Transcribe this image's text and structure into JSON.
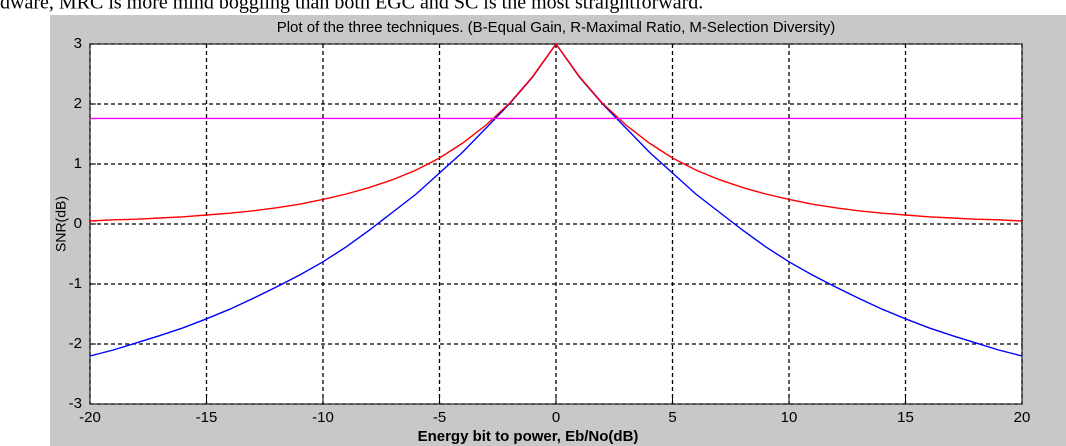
{
  "caption": "dware, MRC is more mind boggling than both EGC and SC is the most straightforward.",
  "chart_data": {
    "type": "line",
    "title": "Plot of the three techniques. (B-Equal Gain, R-Maximal Ratio, M-Selection Diversity)",
    "xlabel": "Energy bit to power, Eb/No(dB)",
    "ylabel": "SNR(dB)",
    "x": [
      -20,
      -19,
      -18,
      -17,
      -16,
      -15,
      -14,
      -13,
      -12,
      -11,
      -10,
      -9,
      -8,
      -7,
      -6,
      -5,
      -4,
      -3,
      -2,
      -1,
      0,
      1,
      2,
      3,
      4,
      5,
      6,
      7,
      8,
      9,
      10,
      11,
      12,
      13,
      14,
      15,
      16,
      17,
      18,
      19,
      20
    ],
    "series": [
      {
        "color": "#0000ff",
        "values": [
          -2.2,
          -2.1,
          -1.98,
          -1.86,
          -1.73,
          -1.58,
          -1.42,
          -1.24,
          -1.05,
          -0.85,
          -0.63,
          -0.38,
          -0.1,
          0.2,
          0.5,
          0.85,
          1.2,
          1.6,
          2.0,
          2.45,
          3,
          2.45,
          2.0,
          1.6,
          1.2,
          0.85,
          0.5,
          0.2,
          -0.1,
          -0.38,
          -0.63,
          -0.85,
          -1.05,
          -1.24,
          -1.42,
          -1.58,
          -1.73,
          -1.86,
          -1.98,
          -2.1,
          -2.2
        ]
      },
      {
        "color": "#ff0000",
        "values": [
          0.05,
          0.07,
          0.08,
          0.1,
          0.12,
          0.15,
          0.18,
          0.22,
          0.27,
          0.33,
          0.41,
          0.5,
          0.61,
          0.74,
          0.9,
          1.1,
          1.35,
          1.65,
          2.01,
          2.46,
          3,
          2.46,
          2.01,
          1.65,
          1.35,
          1.1,
          0.9,
          0.74,
          0.61,
          0.5,
          0.41,
          0.33,
          0.27,
          0.22,
          0.18,
          0.15,
          0.12,
          0.1,
          0.08,
          0.07,
          0.05
        ]
      },
      {
        "color": "#ff00ff",
        "values": [
          1.76,
          1.76,
          1.76,
          1.76,
          1.76,
          1.76,
          1.76,
          1.76,
          1.76,
          1.76,
          1.76,
          1.76,
          1.76,
          1.76,
          1.76,
          1.76,
          1.76,
          1.76,
          1.76,
          1.76,
          1.76,
          1.76,
          1.76,
          1.76,
          1.76,
          1.76,
          1.76,
          1.76,
          1.76,
          1.76,
          1.76,
          1.76,
          1.76,
          1.76,
          1.76,
          1.76,
          1.76,
          1.76,
          1.76,
          1.76,
          1.76
        ]
      }
    ],
    "xlim": [
      -20,
      20
    ],
    "xticks": [
      -20,
      -15,
      -10,
      -5,
      0,
      5,
      10,
      15,
      20
    ],
    "ylim": [
      -3,
      3
    ],
    "yticks": [
      -3,
      -2,
      -1,
      0,
      1,
      2,
      3
    ],
    "grid": true
  }
}
